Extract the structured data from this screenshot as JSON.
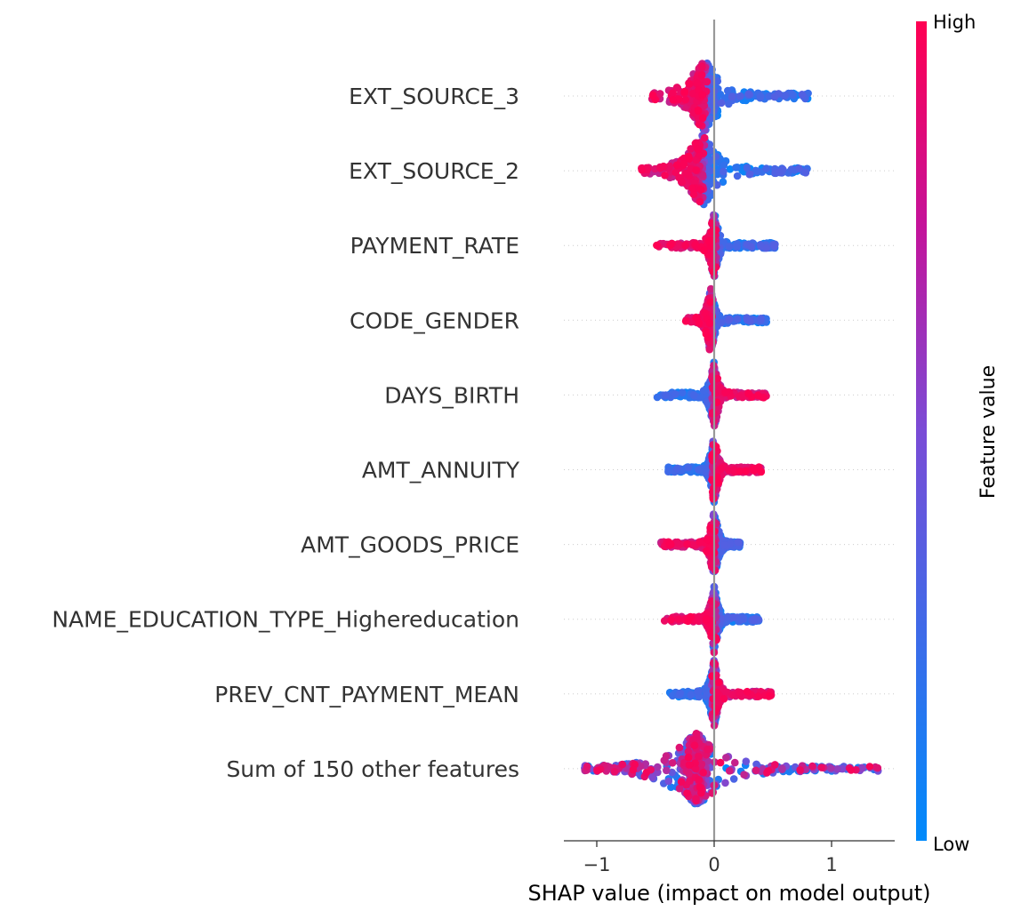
{
  "chart_data": {
    "type": "scatter",
    "subtype": "shap-beeswarm",
    "title": "",
    "xlabel": "SHAP value (impact on model output)",
    "ylabel": "",
    "xlim": [
      -1.27,
      1.53
    ],
    "xticks": [
      -1,
      0,
      1
    ],
    "xtick_labels": [
      "−1",
      "0",
      "1"
    ],
    "zero_line_at": 0,
    "grid": false,
    "colorbar": {
      "title": "Feature value",
      "high_label": "High",
      "low_label": "Low",
      "high_color": "#ff0052",
      "low_color": "#008afb",
      "placement": "right"
    },
    "features": [
      {
        "name": "EXT_SOURCE_3",
        "min": -0.55,
        "max": 0.8,
        "high_side": "negative",
        "hub": -0.08
      },
      {
        "name": "EXT_SOURCE_2",
        "min": -0.63,
        "max": 0.8,
        "high_side": "negative",
        "hub": -0.1
      },
      {
        "name": "PAYMENT_RATE",
        "min": -0.53,
        "max": 0.52,
        "high_side": "negative",
        "hub": 0.0
      },
      {
        "name": "CODE_GENDER",
        "min": -0.25,
        "max": 0.45,
        "high_side": "negative",
        "hub": -0.03
      },
      {
        "name": "DAYS_BIRTH",
        "min": -0.5,
        "max": 0.45,
        "high_side": "positive",
        "hub": 0.0
      },
      {
        "name": "AMT_ANNUITY",
        "min": -0.45,
        "max": 0.4,
        "high_side": "positive",
        "hub": 0.0
      },
      {
        "name": "AMT_GOODS_PRICE",
        "min": -0.5,
        "max": 0.22,
        "high_side": "negative",
        "hub": 0.0
      },
      {
        "name": "NAME_EDUCATION_TYPE_Highereducation",
        "min": -0.45,
        "max": 0.38,
        "high_side": "negative",
        "hub": 0.0
      },
      {
        "name": "PREV_CNT_PAYMENT_MEAN",
        "min": -0.4,
        "max": 0.5,
        "high_side": "positive",
        "hub": 0.0
      },
      {
        "name": "Sum of 150 other features",
        "min": -1.15,
        "max": 1.4,
        "high_side": "mixed",
        "hub": -0.15
      }
    ]
  }
}
